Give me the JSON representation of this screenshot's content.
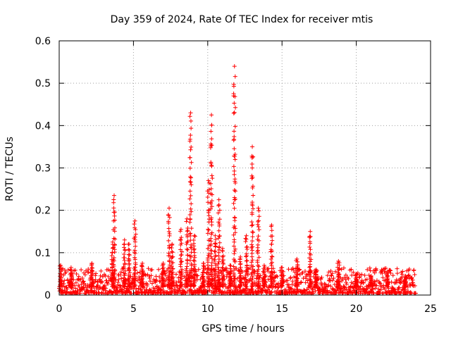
{
  "chart_data": {
    "type": "scatter",
    "title": "Day 359 of 2024, Rate Of TEC Index for receiver mtis",
    "xlabel": "GPS time / hours",
    "ylabel": "ROTI / TECUs",
    "xlim": [
      0,
      25
    ],
    "ylim": [
      0,
      0.6
    ],
    "x_ticks": [
      0,
      5,
      10,
      15,
      20,
      25
    ],
    "y_ticks": [
      0,
      0.1,
      0.2,
      0.3,
      0.4,
      0.5,
      0.6
    ],
    "x_tick_labels": [
      "0",
      "5",
      "10",
      "15",
      "20",
      "25"
    ],
    "y_tick_labels": [
      "0",
      "0.1",
      "0.2",
      "0.3",
      "0.4",
      "0.5",
      "0.6"
    ],
    "grid": true,
    "marker": "+",
    "color": "#ff0000",
    "x_span": [
      0,
      24
    ],
    "background_level": 0.02,
    "background_max": 0.06,
    "spikes": [
      {
        "x": 0.1,
        "peak": 0.07
      },
      {
        "x": 0.8,
        "peak": 0.065
      },
      {
        "x": 2.2,
        "peak": 0.075
      },
      {
        "x": 3.7,
        "peak": 0.235
      },
      {
        "x": 3.6,
        "peak": 0.125
      },
      {
        "x": 4.4,
        "peak": 0.13
      },
      {
        "x": 4.7,
        "peak": 0.12
      },
      {
        "x": 5.1,
        "peak": 0.175
      },
      {
        "x": 5.6,
        "peak": 0.075
      },
      {
        "x": 7.0,
        "peak": 0.075
      },
      {
        "x": 7.4,
        "peak": 0.205
      },
      {
        "x": 7.6,
        "peak": 0.12
      },
      {
        "x": 8.2,
        "peak": 0.155
      },
      {
        "x": 8.6,
        "peak": 0.18
      },
      {
        "x": 8.85,
        "peak": 0.43
      },
      {
        "x": 9.1,
        "peak": 0.14
      },
      {
        "x": 9.7,
        "peak": 0.075
      },
      {
        "x": 10.05,
        "peak": 0.27
      },
      {
        "x": 10.25,
        "peak": 0.425
      },
      {
        "x": 10.5,
        "peak": 0.14
      },
      {
        "x": 10.75,
        "peak": 0.225
      },
      {
        "x": 11.0,
        "peak": 0.11
      },
      {
        "x": 11.5,
        "peak": 0.07
      },
      {
        "x": 11.8,
        "peak": 0.54
      },
      {
        "x": 12.2,
        "peak": 0.09
      },
      {
        "x": 12.6,
        "peak": 0.14
      },
      {
        "x": 13.0,
        "peak": 0.35
      },
      {
        "x": 13.4,
        "peak": 0.205
      },
      {
        "x": 13.8,
        "peak": 0.07
      },
      {
        "x": 14.3,
        "peak": 0.165
      },
      {
        "x": 15.0,
        "peak": 0.065
      },
      {
        "x": 16.0,
        "peak": 0.085
      },
      {
        "x": 16.9,
        "peak": 0.15
      },
      {
        "x": 17.3,
        "peak": 0.06
      },
      {
        "x": 18.8,
        "peak": 0.08
      },
      {
        "x": 20.0,
        "peak": 0.05
      },
      {
        "x": 21.0,
        "peak": 0.045
      },
      {
        "x": 22.1,
        "peak": 0.055
      },
      {
        "x": 23.3,
        "peak": 0.045
      }
    ]
  }
}
